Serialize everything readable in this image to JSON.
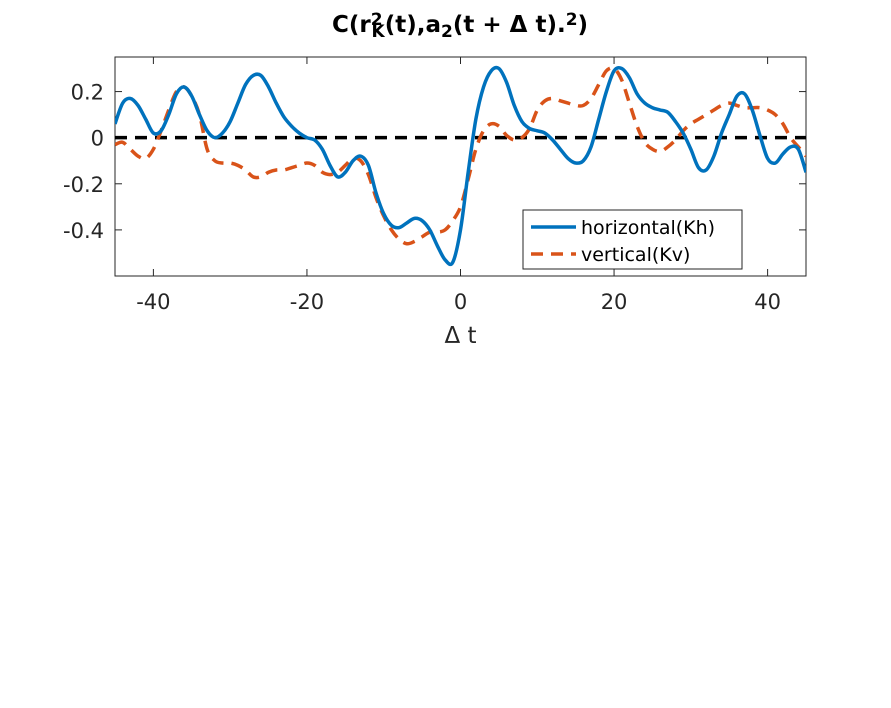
{
  "chart_data": {
    "type": "line",
    "title_parts": [
      {
        "text": "C(r",
        "role": "base"
      },
      {
        "text": "2",
        "role": "sup"
      },
      {
        "text": "K",
        "role": "sub"
      },
      {
        "text": "(t),a",
        "role": "base"
      },
      {
        "text": "2",
        "role": "sub"
      },
      {
        "text": "(t + Δ t).",
        "role": "base"
      },
      {
        "text": "2",
        "role": "sup"
      },
      {
        "text": ")",
        "role": "base"
      }
    ],
    "xlabel": "Δ t",
    "ylabel": "",
    "xlim": [
      -45,
      45
    ],
    "ylim": [
      -0.6,
      0.35
    ],
    "xticks": [
      -40,
      -20,
      0,
      20,
      40
    ],
    "xtick_labels": [
      "-40",
      "-20",
      "0",
      "20",
      "40"
    ],
    "yticks": [
      0.2,
      0,
      -0.2,
      -0.4
    ],
    "ytick_labels": [
      "0.2",
      "0",
      "-0.2",
      "-0.4"
    ],
    "grid": false,
    "legend_position": "bottom-right",
    "reference_line": {
      "y": 0,
      "style": "dashed",
      "color": "#000000"
    },
    "series": [
      {
        "name": "horizontal(Kh)",
        "color": "#0072bd",
        "style": "solid",
        "x": [
          -45,
          -44,
          -43,
          -42,
          -41,
          -40,
          -39,
          -38,
          -37,
          -36,
          -35,
          -34,
          -33,
          -32,
          -31,
          -30,
          -29,
          -28,
          -27,
          -26,
          -25,
          -24,
          -23,
          -22,
          -21,
          -20,
          -19,
          -18,
          -17,
          -16,
          -15,
          -14,
          -13,
          -12,
          -11,
          -10,
          -9,
          -8,
          -7,
          -6,
          -5,
          -4,
          -3,
          -2,
          -1,
          0,
          1,
          2,
          3,
          4,
          5,
          6,
          7,
          8,
          9,
          10,
          11,
          12,
          13,
          14,
          15,
          16,
          17,
          18,
          19,
          20,
          21,
          22,
          23,
          24,
          25,
          26,
          27,
          28,
          29,
          30,
          31,
          32,
          33,
          34,
          35,
          36,
          37,
          38,
          39,
          40,
          41,
          42,
          43,
          44,
          45
        ],
        "y": [
          0.06,
          0.15,
          0.17,
          0.14,
          0.08,
          0.02,
          0.03,
          0.1,
          0.19,
          0.22,
          0.18,
          0.1,
          0.03,
          0.0,
          0.02,
          0.07,
          0.15,
          0.23,
          0.27,
          0.27,
          0.22,
          0.15,
          0.09,
          0.05,
          0.02,
          0.0,
          -0.01,
          -0.05,
          -0.12,
          -0.17,
          -0.15,
          -0.1,
          -0.08,
          -0.12,
          -0.24,
          -0.33,
          -0.38,
          -0.39,
          -0.37,
          -0.35,
          -0.36,
          -0.4,
          -0.47,
          -0.53,
          -0.54,
          -0.4,
          -0.15,
          0.08,
          0.22,
          0.29,
          0.3,
          0.24,
          0.14,
          0.07,
          0.04,
          0.03,
          0.02,
          -0.01,
          -0.05,
          -0.09,
          -0.11,
          -0.1,
          -0.04,
          0.08,
          0.2,
          0.29,
          0.3,
          0.26,
          0.19,
          0.15,
          0.13,
          0.12,
          0.11,
          0.07,
          0.02,
          -0.05,
          -0.13,
          -0.14,
          -0.08,
          0.02,
          0.1,
          0.18,
          0.19,
          0.12,
          0.01,
          -0.09,
          -0.11,
          -0.07,
          -0.04,
          -0.05,
          -0.15
        ]
      },
      {
        "name": "vertical(Kv)",
        "color": "#d95319",
        "style": "dashed",
        "x": [
          -45,
          -44,
          -43,
          -42,
          -41,
          -40,
          -39,
          -38,
          -37,
          -36,
          -35,
          -34,
          -33,
          -32,
          -31,
          -30,
          -29,
          -28,
          -27,
          -26,
          -25,
          -24,
          -23,
          -22,
          -21,
          -20,
          -19,
          -18,
          -17,
          -16,
          -15,
          -14,
          -13,
          -12,
          -11,
          -10,
          -9,
          -8,
          -7,
          -6,
          -5,
          -4,
          -3,
          -2,
          -1,
          0,
          1,
          2,
          3,
          4,
          5,
          6,
          7,
          8,
          9,
          10,
          11,
          12,
          13,
          14,
          15,
          16,
          17,
          18,
          19,
          20,
          21,
          22,
          23,
          24,
          25,
          26,
          27,
          28,
          29,
          30,
          31,
          32,
          33,
          34,
          35,
          36,
          37,
          38,
          39,
          40,
          41,
          42,
          43,
          44,
          45
        ],
        "y": [
          -0.03,
          -0.02,
          -0.05,
          -0.08,
          -0.09,
          -0.05,
          0.03,
          0.12,
          0.2,
          0.22,
          0.18,
          0.1,
          -0.05,
          -0.1,
          -0.11,
          -0.11,
          -0.12,
          -0.14,
          -0.17,
          -0.17,
          -0.15,
          -0.14,
          -0.14,
          -0.13,
          -0.12,
          -0.11,
          -0.12,
          -0.15,
          -0.16,
          -0.15,
          -0.12,
          -0.09,
          -0.1,
          -0.16,
          -0.26,
          -0.34,
          -0.4,
          -0.44,
          -0.46,
          -0.45,
          -0.43,
          -0.41,
          -0.41,
          -0.4,
          -0.36,
          -0.3,
          -0.18,
          -0.05,
          0.03,
          0.06,
          0.05,
          0.01,
          -0.01,
          0.0,
          0.04,
          0.12,
          0.16,
          0.17,
          0.16,
          0.15,
          0.14,
          0.14,
          0.17,
          0.23,
          0.29,
          0.3,
          0.25,
          0.15,
          0.05,
          -0.02,
          -0.05,
          -0.06,
          -0.04,
          -0.01,
          0.03,
          0.06,
          0.08,
          0.1,
          0.12,
          0.14,
          0.15,
          0.14,
          0.13,
          0.13,
          0.13,
          0.12,
          0.1,
          0.06,
          0.0,
          -0.04,
          -0.08
        ]
      }
    ]
  }
}
